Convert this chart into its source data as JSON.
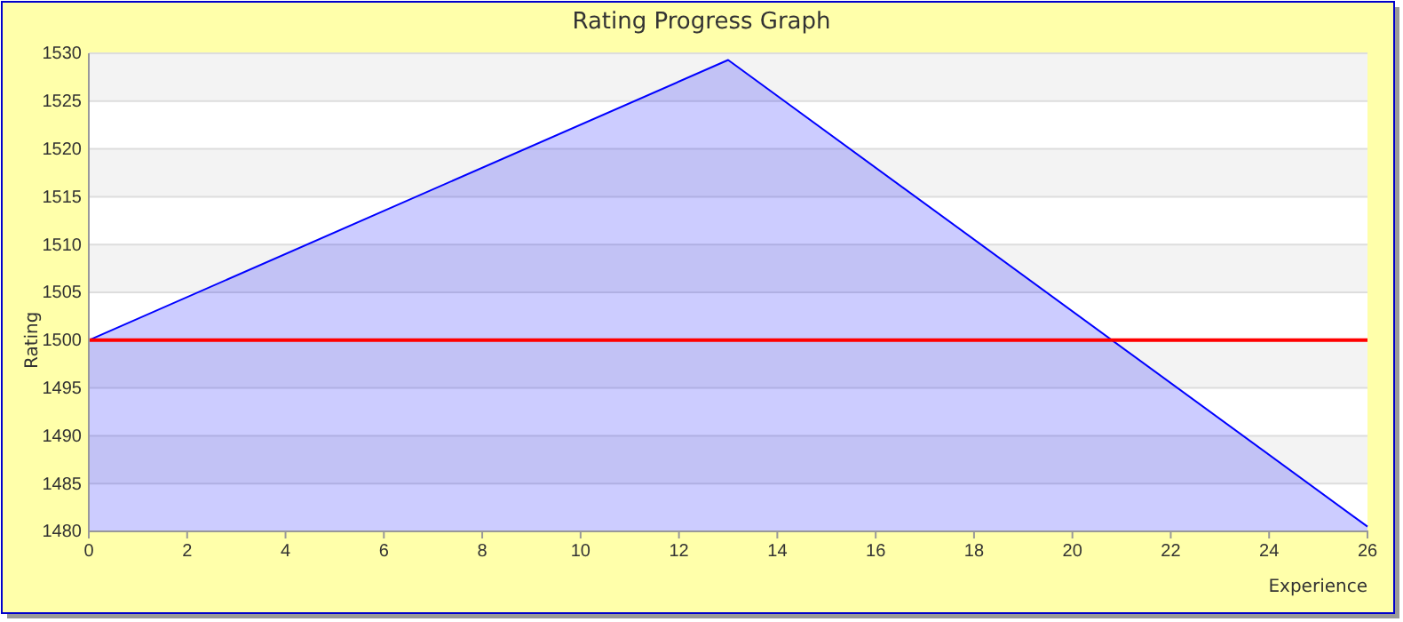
{
  "chart_data": {
    "type": "area",
    "title": "Rating Progress Graph",
    "xlabel": "Experience",
    "ylabel": "Rating",
    "x": [
      0,
      13,
      26
    ],
    "series": [
      {
        "color": "#0000ff",
        "values": [
          1500,
          1529.3,
          1480.5
        ]
      }
    ],
    "xlim": [
      0,
      26
    ],
    "xticks": [
      0,
      2,
      4,
      6,
      8,
      10,
      12,
      14,
      16,
      18,
      20,
      22,
      24,
      26
    ],
    "ylim": [
      1480,
      1530
    ],
    "yticks": [
      1480,
      1485,
      1490,
      1495,
      1500,
      1505,
      1510,
      1515,
      1520,
      1525,
      1530
    ],
    "grid": "y",
    "ref_lines": [
      {
        "axis": "y",
        "value": 1500,
        "color": "#ff0000"
      }
    ]
  }
}
